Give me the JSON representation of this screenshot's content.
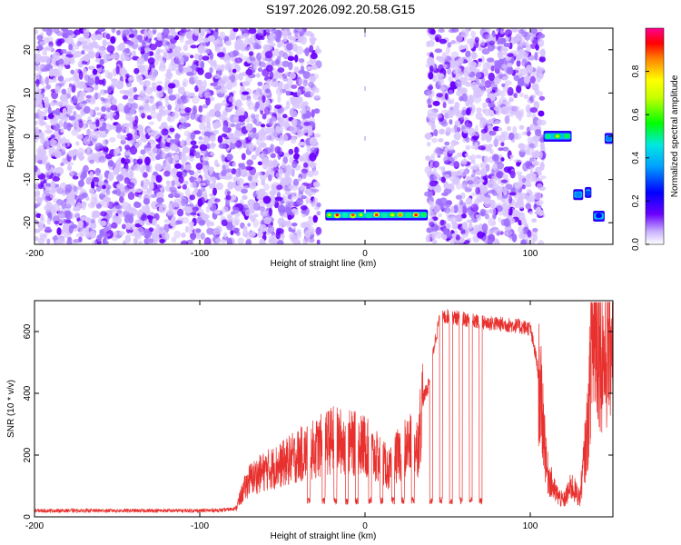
{
  "title": "S197.2026.092.20.58.G15",
  "chart_data": [
    {
      "type": "heatmap",
      "name": "spectrogram",
      "xlabel": "Height of straight line (km)",
      "ylabel": "Frequency (Hz)",
      "xlim": [
        -200,
        150
      ],
      "ylim": [
        -25,
        25
      ],
      "xticks": [
        -200,
        -100,
        0,
        100
      ],
      "yticks": [
        20,
        10,
        0,
        -10,
        -20
      ],
      "colorbar": {
        "label": "Normalized spectral amplitude",
        "range": [
          0,
          1
        ],
        "ticks": [
          0.0,
          0.2,
          0.4,
          0.6,
          0.8
        ],
        "colors": [
          "#ffffff",
          "#6a00ff",
          "#0000ff",
          "#00c8ff",
          "#00ff00",
          "#ffff00",
          "#ff8000",
          "#ff0000",
          "#ff00a0"
        ]
      },
      "noise_regions": [
        [
          -200,
          -28
        ],
        [
          38,
          108
        ]
      ],
      "gap_regions": [
        [
          -28,
          38
        ]
      ],
      "signal_tracks": [
        {
          "x_range": [
            -24,
            38
          ],
          "freq": -18.2,
          "peak": 0.95
        },
        {
          "x_range": [
            108,
            125
          ],
          "freq": 0.0,
          "peak": 0.9
        },
        {
          "x_range": [
            126,
            132
          ],
          "freq": -13.5,
          "peak": 0.55
        },
        {
          "x_range": [
            133,
            137
          ],
          "freq": -13.0,
          "peak": 0.5
        },
        {
          "x_range": [
            138,
            145
          ],
          "freq": -18.5,
          "peak": 0.55
        },
        {
          "x_range": [
            145,
            150
          ],
          "freq": -0.5,
          "peak": 0.5
        }
      ]
    },
    {
      "type": "line",
      "name": "snr",
      "xlabel": "Height of straight line (km)",
      "ylabel": "SNR (10 * v/v)",
      "xlim": [
        -200,
        150
      ],
      "ylim": [
        0,
        700
      ],
      "xticks": [
        -200,
        -100,
        0,
        100
      ],
      "yticks": [
        0,
        200,
        400,
        600
      ],
      "color": "#e8312e",
      "series": [
        {
          "name": "SNR",
          "x": [
            -200,
            -175,
            -150,
            -125,
            -100,
            -85,
            -78,
            -74,
            -70,
            -60,
            -50,
            -40,
            -30,
            -20,
            -10,
            0,
            5,
            10,
            15,
            20,
            25,
            30,
            32,
            35,
            38,
            40,
            42,
            45,
            50,
            60,
            70,
            80,
            90,
            100,
            104,
            108,
            110,
            115,
            120,
            125,
            130,
            135,
            137,
            140,
            145,
            150
          ],
          "y": [
            20,
            20,
            20,
            20,
            20,
            22,
            28,
            80,
            120,
            150,
            170,
            200,
            220,
            250,
            240,
            230,
            200,
            180,
            150,
            200,
            230,
            230,
            230,
            380,
            420,
            480,
            560,
            640,
            650,
            640,
            630,
            625,
            620,
            610,
            500,
            300,
            150,
            80,
            50,
            100,
            60,
            300,
            560,
            600,
            500,
            650
          ]
        }
      ],
      "dropouts": [
        -34,
        -25,
        -18,
        -11,
        -5,
        3,
        10,
        17,
        23,
        29,
        40,
        46,
        52,
        58,
        64,
        70
      ]
    }
  ]
}
